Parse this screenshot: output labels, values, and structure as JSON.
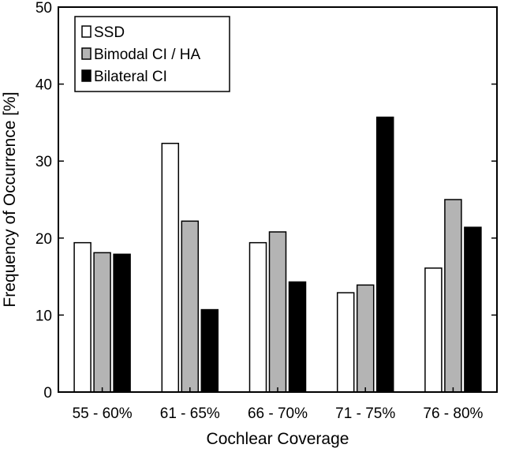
{
  "chart_data": {
    "type": "bar",
    "title": "",
    "xlabel": "Cochlear Coverage",
    "ylabel": "Frequency of Occurrence [%]",
    "ylim": [
      0,
      50
    ],
    "yticks": [
      0,
      10,
      20,
      30,
      40,
      50
    ],
    "grid": false,
    "legend_position": "top-left",
    "categories": [
      "55 - 60%",
      "61 - 65%",
      "66 - 70%",
      "71 - 75%",
      "76 - 80%"
    ],
    "series": [
      {
        "name": "SSD",
        "color": "#ffffff",
        "values": [
          19.4,
          32.3,
          19.4,
          12.9,
          16.1
        ]
      },
      {
        "name": "Bimodal CI / HA",
        "color": "#b4b4b4",
        "values": [
          18.1,
          22.2,
          20.8,
          13.9,
          25.0
        ]
      },
      {
        "name": "Bilateral CI",
        "color": "#000000",
        "values": [
          17.9,
          10.7,
          14.3,
          35.7,
          21.4
        ]
      }
    ]
  }
}
